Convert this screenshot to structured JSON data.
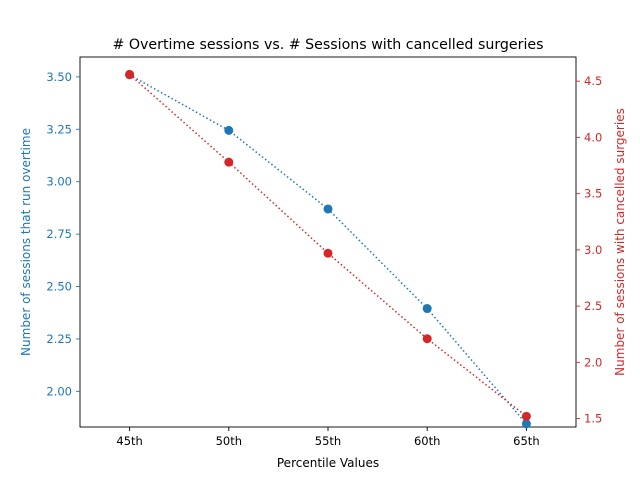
{
  "chart_data": {
    "type": "line",
    "title": "# Overtime sessions vs. # Sessions with cancelled surgeries",
    "xlabel": "Percentile Values",
    "categories": [
      "45th",
      "50th",
      "55th",
      "60th",
      "65th"
    ],
    "grid": false,
    "series": [
      {
        "axis": "left",
        "color": "#1f77b4",
        "linestyle": "dotted",
        "marker": "circle",
        "values": [
          3.51,
          3.245,
          2.87,
          2.395,
          1.845
        ]
      },
      {
        "axis": "right",
        "color": "#d62728",
        "linestyle": "dotted",
        "marker": "circle",
        "values": [
          4.56,
          3.78,
          2.97,
          2.21,
          1.52
        ]
      }
    ],
    "y_left": {
      "label": "Number of sessions that run overtime",
      "color": "#1f77b4",
      "ylim": [
        1.83,
        3.595
      ],
      "ticks": [
        2.0,
        2.25,
        2.5,
        2.75,
        3.0,
        3.25,
        3.5
      ],
      "tick_labels": [
        "2.00",
        "2.25",
        "2.50",
        "2.75",
        "3.00",
        "3.25",
        "3.50"
      ]
    },
    "y_right": {
      "label": "Number of sessions with cancelled surgeries",
      "color": "#d62728",
      "ylim": [
        1.425,
        4.715
      ],
      "ticks": [
        1.5,
        2.0,
        2.5,
        3.0,
        3.5,
        4.0,
        4.5
      ],
      "tick_labels": [
        "1.5",
        "2.0",
        "2.5",
        "3.0",
        "3.5",
        "4.0",
        "4.5"
      ]
    }
  }
}
